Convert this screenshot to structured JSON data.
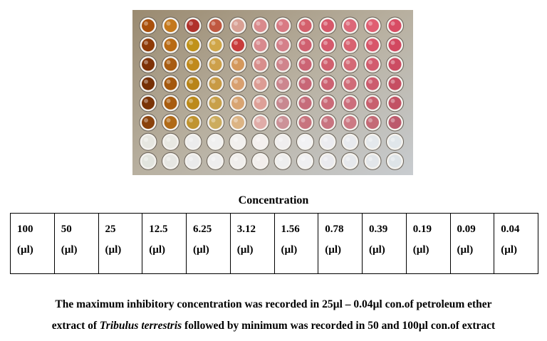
{
  "figure": {
    "rows": 8,
    "columns": 12,
    "well_colors": [
      [
        "#a9500c",
        "#c4781c",
        "#b0322b",
        "#c05840",
        "#d8a094",
        "#d98a8c",
        "#d97a84",
        "#d4606c",
        "#d6586a",
        "#dc6878",
        "#e05e72",
        "#d84c64"
      ],
      [
        "#8e3a08",
        "#b86a14",
        "#c0921a",
        "#d0a648",
        "#c83c3c",
        "#d88a8e",
        "#d5808a",
        "#d06070",
        "#d45a6c",
        "#d86270",
        "#d8566a",
        "#d24860"
      ],
      [
        "#7e3208",
        "#a85c12",
        "#c08a1c",
        "#cda04a",
        "#d4985c",
        "#d88e8c",
        "#d0848c",
        "#cc6474",
        "#d0606e",
        "#d46a76",
        "#d25c6e",
        "#cc4c62"
      ],
      [
        "#763006",
        "#a4580e",
        "#b88418",
        "#c89a44",
        "#d8a070",
        "#dc9c94",
        "#cc868e",
        "#c86676",
        "#cc6272",
        "#d06c78",
        "#cc5c6e",
        "#c64e62"
      ],
      [
        "#7a3408",
        "#a85c10",
        "#bc8a1a",
        "#c8a04a",
        "#d8a472",
        "#dea098",
        "#c88890",
        "#c66c7a",
        "#ca6a78",
        "#cc6e7c",
        "#c8606e",
        "#c25264"
      ],
      [
        "#8a420c",
        "#b06a18",
        "#c09430",
        "#ccac5e",
        "#dcb484",
        "#e0aca8",
        "#cc9298",
        "#c8747e",
        "#c87480",
        "#cc7a84",
        "#c46a76",
        "#bc5a6c"
      ],
      [
        "#e6e6e0",
        "#e8e8e2",
        "#ececec",
        "#f0f0f0",
        "#f2f0ee",
        "#f4f0ee",
        "#f0eeee",
        "#f2f2f4",
        "#ececf0",
        "#e8eaee",
        "#e4e8ec",
        "#e0e6ea"
      ],
      [
        "#e2e4de",
        "#e6e6e2",
        "#eaeaea",
        "#eeeeee",
        "#f0eeec",
        "#f2eeec",
        "#eeeeee",
        "#f0f0f2",
        "#eaeaee",
        "#e6e8ec",
        "#e2e6ea",
        "#dee4e8"
      ]
    ]
  },
  "concentration_heading": "Concentration",
  "concentrations": [
    {
      "value": "100",
      "unit": "(µl)"
    },
    {
      "value": "50",
      "unit": "(µl)"
    },
    {
      "value": "25",
      "unit": "(µl)"
    },
    {
      "value": "12.5",
      "unit": "(µl)"
    },
    {
      "value": "6.25",
      "unit": "(µl)"
    },
    {
      "value": "3.12",
      "unit": "(µl)"
    },
    {
      "value": "1.56",
      "unit": "(µl)"
    },
    {
      "value": "0.78",
      "unit": "(µl)"
    },
    {
      "value": "0.39",
      "unit": "(µl)"
    },
    {
      "value": "0.19",
      "unit": "(µl)"
    },
    {
      "value": "0.09",
      "unit": "(µl)"
    },
    {
      "value": "0.04",
      "unit": "(µl)"
    }
  ],
  "caption": {
    "line1": "The maximum inhibitory concentration was recorded in 25µl – 0.04µl con.of petroleum ether",
    "line2_before": "extract of ",
    "line2_species": "Tribulus terrestris",
    "line2_after": " followed by minimum was recorded in 50 and 100µl con.of extract"
  }
}
